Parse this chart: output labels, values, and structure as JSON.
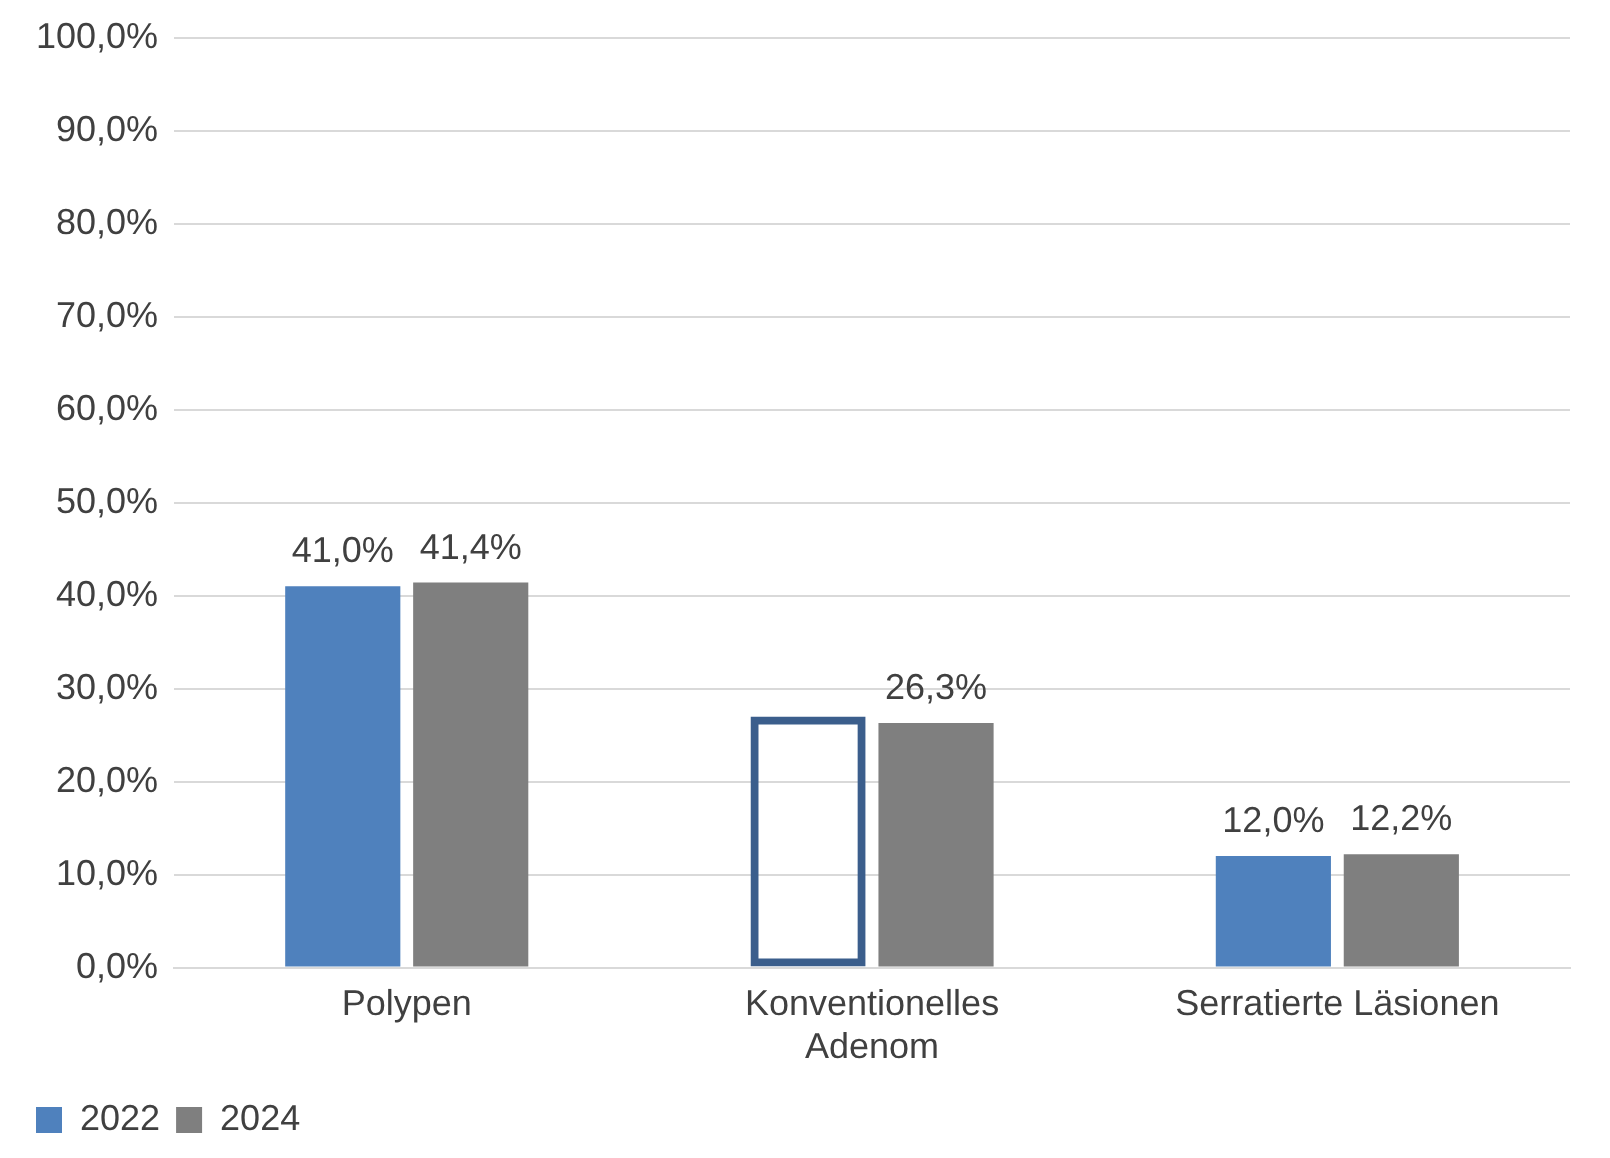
{
  "chart_data": {
    "type": "bar",
    "categories": [
      "Polypen",
      "Konventionelles\nAdenom",
      "Serratierte Läsionen"
    ],
    "series": [
      {
        "name": "2022",
        "color": "#4f81bd",
        "colors": [
          "#4f81bd",
          "#3b5e8c",
          "#4f81bd"
        ],
        "values": [
          41.0,
          27.0,
          12.0
        ],
        "value_labels": [
          "41,0%",
          null,
          "12,0%"
        ]
      },
      {
        "name": "2024",
        "color": "#7f7f7f",
        "values": [
          41.4,
          26.3,
          12.2
        ],
        "value_labels": [
          "41,4%",
          "26,3%",
          "12,2%"
        ]
      }
    ],
    "ylim": [
      0,
      100
    ],
    "yticks": [
      {
        "value": 0,
        "label": "0,0%"
      },
      {
        "value": 10,
        "label": "10,0%"
      },
      {
        "value": 20,
        "label": "20,0%"
      },
      {
        "value": 30,
        "label": "30,0%"
      },
      {
        "value": 40,
        "label": "40,0%"
      },
      {
        "value": 50,
        "label": "50,0%"
      },
      {
        "value": 60,
        "label": "60,0%"
      },
      {
        "value": 70,
        "label": "70,0%"
      },
      {
        "value": 80,
        "label": "80,0%"
      },
      {
        "value": 90,
        "label": "90,0%"
      },
      {
        "value": 100,
        "label": "100,0%"
      }
    ],
    "grid": "y",
    "legend": "bottom left"
  }
}
